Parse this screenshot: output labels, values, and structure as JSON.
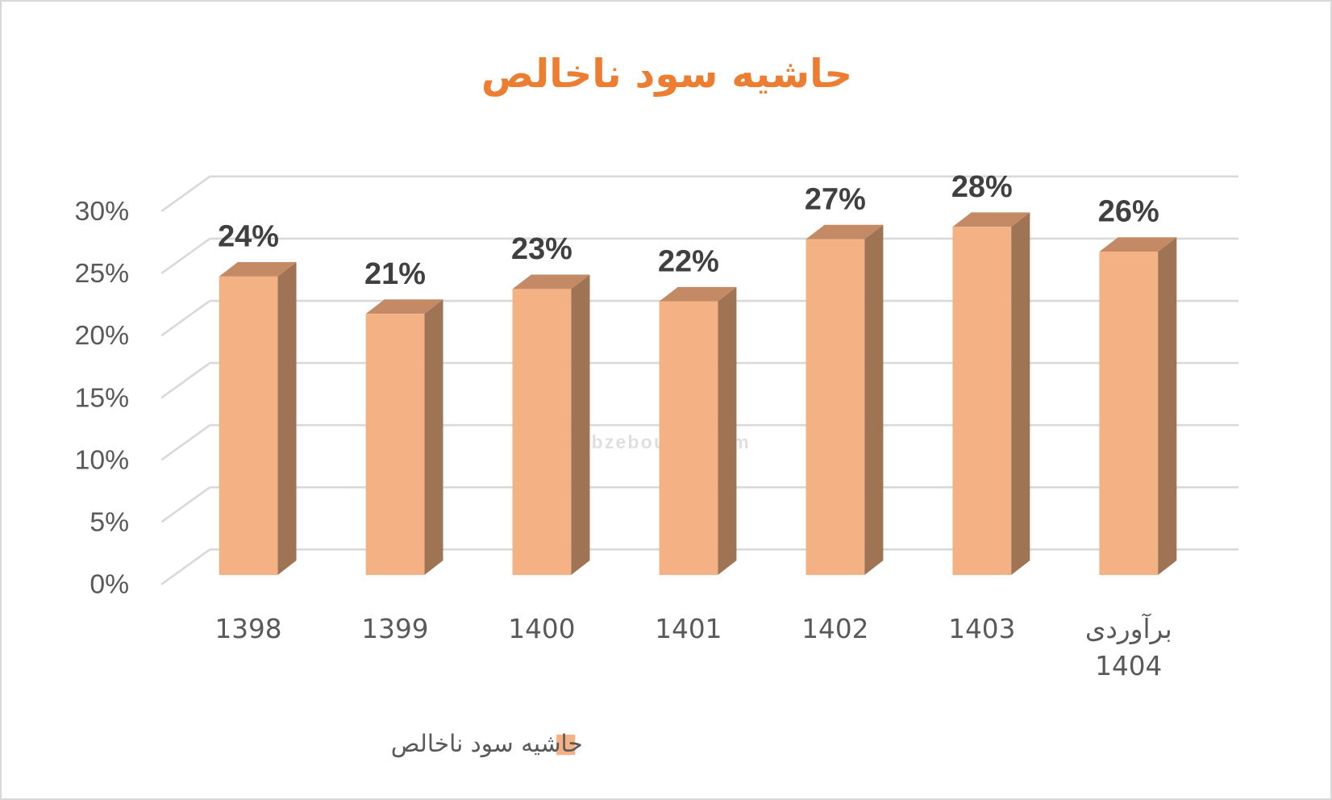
{
  "chart_data": {
    "type": "bar3d",
    "title": "حاشیه سود ناخالص",
    "categories": [
      "1398",
      "1399",
      "1400",
      "1401",
      "1402",
      "1403",
      "برآوردی 1404"
    ],
    "series": [
      {
        "name": "حاشیه سود ناخالص",
        "color": "#F4B183",
        "values": [
          24,
          21,
          23,
          22,
          27,
          28,
          26
        ],
        "value_labels": [
          "24%",
          "21%",
          "23%",
          "22%",
          "27%",
          "28%",
          "26%"
        ]
      }
    ],
    "ylim": [
      0,
      30
    ],
    "yticks": [
      {
        "value": 0,
        "label": "0%"
      },
      {
        "value": 5,
        "label": "5%"
      },
      {
        "value": 10,
        "label": "10%"
      },
      {
        "value": 15,
        "label": "15%"
      },
      {
        "value": 20,
        "label": "20%"
      },
      {
        "value": 25,
        "label": "25%"
      },
      {
        "value": 30,
        "label": "30%"
      }
    ],
    "grid": true,
    "legend": "bottom",
    "watermark": "nabzebourse.com"
  }
}
